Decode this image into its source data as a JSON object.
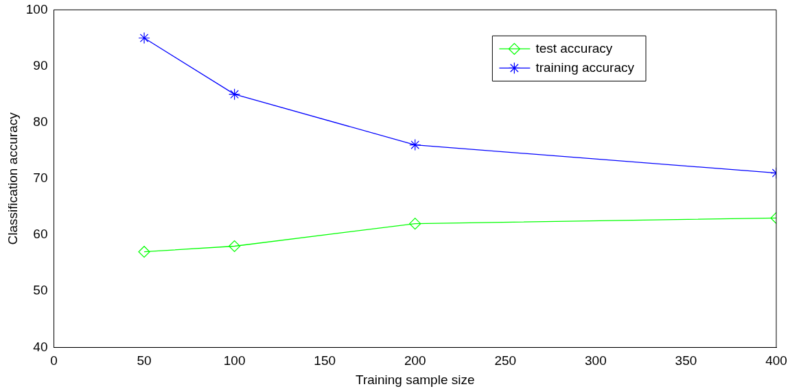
{
  "chart_data": {
    "type": "line",
    "xlabel": "Training sample size",
    "ylabel": "Classification accuracy",
    "x": [
      50,
      100,
      200,
      400
    ],
    "series": [
      {
        "name": "test accuracy",
        "color": "#00ff00",
        "values": [
          57,
          58,
          62,
          63
        ],
        "marker": "diamond"
      },
      {
        "name": "training accuracy",
        "color": "#0000ff",
        "values": [
          95,
          85,
          76,
          71
        ],
        "marker": "cross"
      }
    ],
    "xlim": [
      0,
      400
    ],
    "xticks": [
      0,
      50,
      100,
      150,
      200,
      250,
      300,
      350,
      400
    ],
    "ylim": [
      40,
      100
    ],
    "yticks": [
      40,
      50,
      60,
      70,
      80,
      90,
      100
    ],
    "grid": false,
    "legend": "top right",
    "line_style": "solid"
  }
}
